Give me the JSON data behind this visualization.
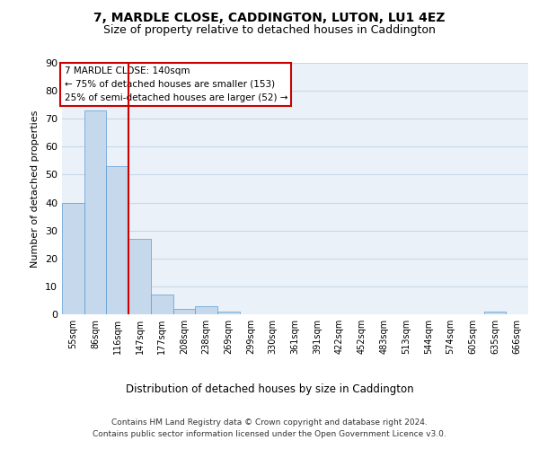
{
  "title1": "7, MARDLE CLOSE, CADDINGTON, LUTON, LU1 4EZ",
  "title2": "Size of property relative to detached houses in Caddington",
  "xlabel": "Distribution of detached houses by size in Caddington",
  "ylabel": "Number of detached properties",
  "categories": [
    "55sqm",
    "86sqm",
    "116sqm",
    "147sqm",
    "177sqm",
    "208sqm",
    "238sqm",
    "269sqm",
    "299sqm",
    "330sqm",
    "361sqm",
    "391sqm",
    "422sqm",
    "452sqm",
    "483sqm",
    "513sqm",
    "544sqm",
    "574sqm",
    "605sqm",
    "635sqm",
    "666sqm"
  ],
  "values": [
    40,
    73,
    53,
    27,
    7,
    2,
    3,
    1,
    0,
    0,
    0,
    0,
    0,
    0,
    0,
    0,
    0,
    0,
    0,
    1,
    0
  ],
  "bar_color": "#c5d8ec",
  "bar_edge_color": "#5b9bd5",
  "grid_color": "#c8d8e8",
  "background_color": "#eaf1f8",
  "vline_color": "#cc0000",
  "annotation_text": "7 MARDLE CLOSE: 140sqm\n← 75% of detached houses are smaller (153)\n25% of semi-detached houses are larger (52) →",
  "annotation_box_color": "#ffffff",
  "annotation_box_edge": "#cc0000",
  "ylim": [
    0,
    90
  ],
  "yticks": [
    0,
    10,
    20,
    30,
    40,
    50,
    60,
    70,
    80,
    90
  ],
  "footnote1": "Contains HM Land Registry data © Crown copyright and database right 2024.",
  "footnote2": "Contains public sector information licensed under the Open Government Licence v3.0."
}
